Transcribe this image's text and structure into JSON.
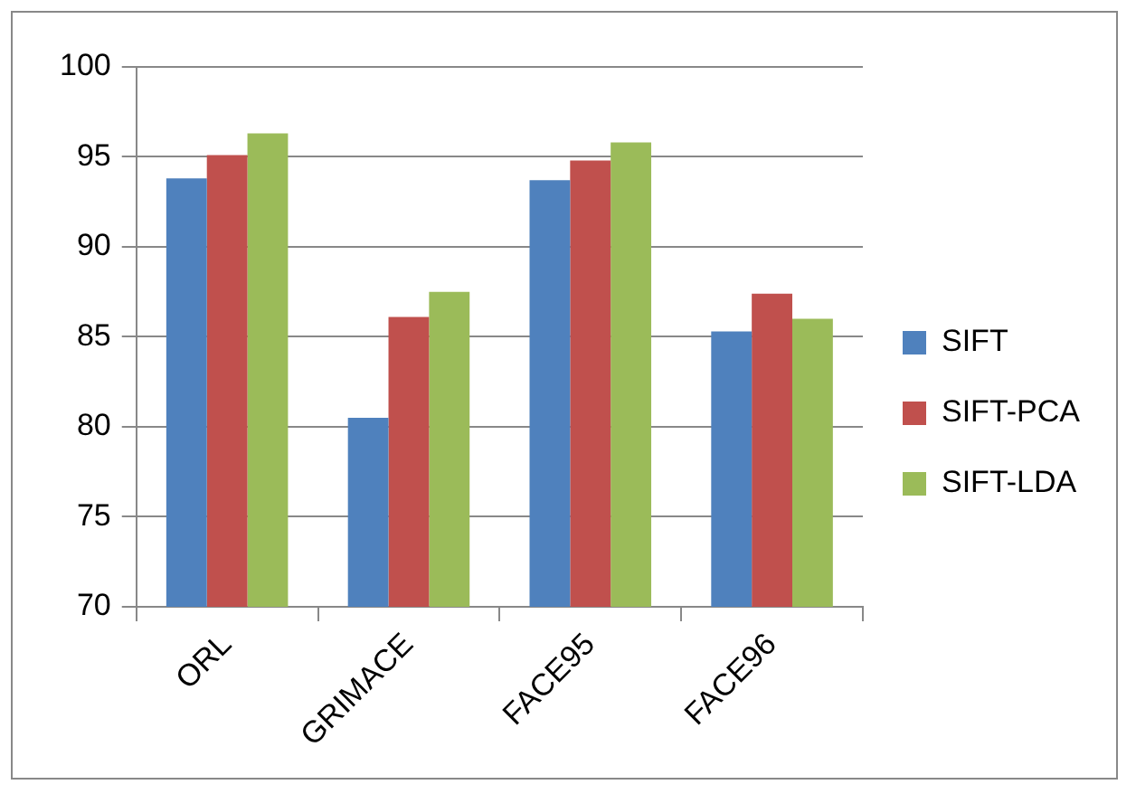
{
  "chart_data": {
    "type": "bar",
    "categories": [
      "ORL",
      "GRIMACE",
      "FACE95",
      "FACE96"
    ],
    "series": [
      {
        "name": "SIFT",
        "color": "#4f81bd",
        "values": [
          93.8,
          80.5,
          93.7,
          85.3
        ]
      },
      {
        "name": "SIFT-PCA",
        "color": "#c0504d",
        "values": [
          95.1,
          86.1,
          94.8,
          87.4
        ]
      },
      {
        "name": "SIFT-LDA",
        "color": "#9bbb59",
        "values": [
          96.3,
          87.5,
          95.8,
          86.0
        ]
      }
    ],
    "ylim": [
      70,
      100
    ],
    "yticks": [
      70,
      75,
      80,
      85,
      90,
      95,
      100
    ],
    "grid": "y",
    "legend": "right"
  }
}
